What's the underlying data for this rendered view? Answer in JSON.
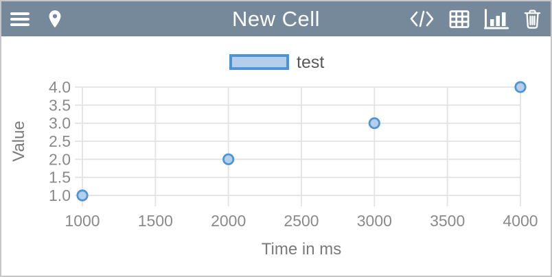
{
  "header": {
    "title": "New Cell",
    "menu_button": "menu",
    "location_button": "location",
    "code_view_button": "code view",
    "table_view_button": "table view",
    "chart_view_button": "chart view",
    "delete_button": "delete cell",
    "active_view": "chart"
  },
  "colors": {
    "header_bg": "#76899a",
    "header_icon": "#ffffff",
    "page_border": "#c6c6c6",
    "grid": "#e3e3e3",
    "tick_label": "#8a8a8a",
    "axis_title": "#7a7a7a",
    "legend_text": "#58585a",
    "series_stroke": "#4e94d4",
    "series_fill": "#b3cfeb"
  },
  "chart_data": {
    "type": "scatter",
    "title": "",
    "series": [
      {
        "name": "test",
        "color": "#4e94d4",
        "fill": "#b3cfeb",
        "points": [
          [
            1000,
            1.0
          ],
          [
            2000,
            2.0
          ],
          [
            3000,
            3.0
          ],
          [
            4000,
            4.0
          ]
        ]
      }
    ],
    "xlabel": "Time in ms",
    "ylabel": "Value",
    "x_ticks": [
      "1000",
      "1500",
      "2000",
      "2500",
      "3000",
      "3500",
      "4000"
    ],
    "y_ticks": [
      "1.0",
      "1.5",
      "2.0",
      "2.5",
      "3.0",
      "3.5",
      "4.0"
    ],
    "xlim": [
      1000,
      4000
    ],
    "ylim": [
      1.0,
      4.0
    ],
    "grid": true,
    "legend_position": "top-center"
  }
}
